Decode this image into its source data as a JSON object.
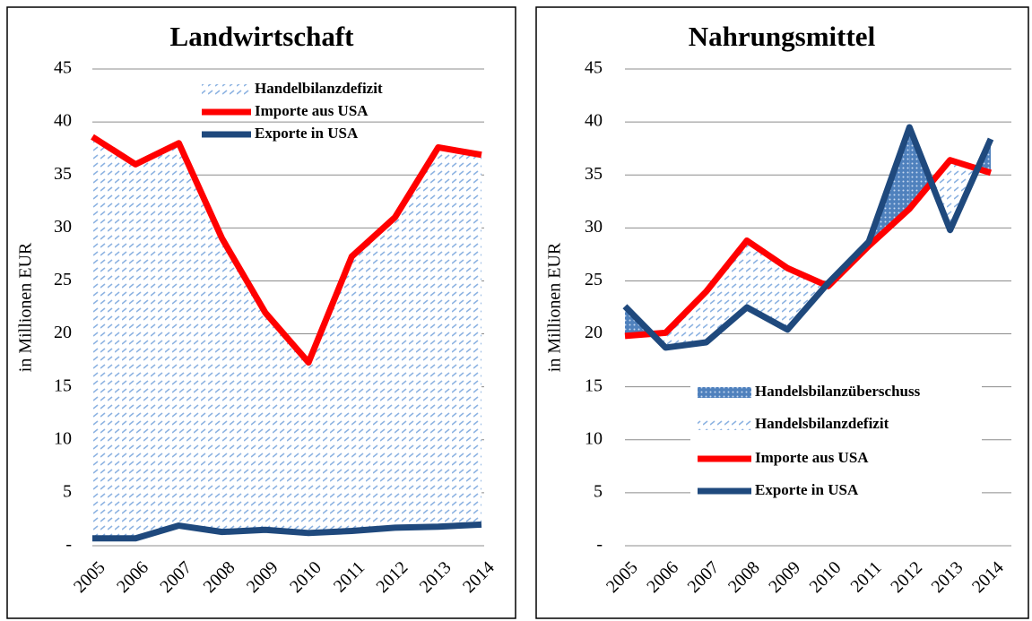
{
  "chart_data": [
    {
      "type": "line",
      "title": "Landwirtschaft",
      "y_label": "in Millionen EUR",
      "categories": [
        "2005",
        "2006",
        "2007",
        "2008",
        "2009",
        "2010",
        "2011",
        "2012",
        "2013",
        "2014"
      ],
      "deficit_name": "Handelbilanzdefizit",
      "series": [
        {
          "name": "Importe aus USA",
          "color": "#ff0000",
          "values": [
            38.6,
            36.0,
            38.0,
            29.0,
            22.0,
            17.3,
            27.3,
            31.0,
            37.6,
            36.9
          ]
        },
        {
          "name": "Exporte in USA",
          "color": "#1f497d",
          "values": [
            0.7,
            0.7,
            1.9,
            1.3,
            1.5,
            1.2,
            1.4,
            1.7,
            1.8,
            2.0
          ]
        }
      ],
      "ylim": [
        0,
        45
      ],
      "yticks": [
        {
          "value": 0,
          "label": "-"
        },
        5,
        10,
        15,
        20,
        25,
        30,
        35,
        40,
        45
      ],
      "grid": true
    },
    {
      "type": "line",
      "title": "Nahrungsmittel",
      "y_label": "in Millionen EUR",
      "categories": [
        "2005",
        "2006",
        "2007",
        "2008",
        "2009",
        "2010",
        "2011",
        "2012",
        "2013",
        "2014"
      ],
      "surplus_name": "Handelsbilanzüberschuss",
      "deficit_name": "Handelsbilanzdefizit",
      "series": [
        {
          "name": "Importe aus USA",
          "color": "#ff0000",
          "values": [
            19.8,
            20.1,
            24.0,
            28.8,
            26.2,
            24.5,
            28.3,
            31.8,
            36.4,
            35.2
          ]
        },
        {
          "name": "Exporte in USA",
          "color": "#1f497d",
          "values": [
            22.6,
            18.7,
            19.2,
            22.5,
            20.4,
            24.8,
            28.7,
            39.5,
            29.8,
            38.4
          ]
        }
      ],
      "ylim": [
        0,
        45
      ],
      "yticks": [
        {
          "value": 0,
          "label": "-"
        },
        5,
        10,
        15,
        20,
        25,
        30,
        35,
        40,
        45
      ],
      "grid": true
    }
  ]
}
